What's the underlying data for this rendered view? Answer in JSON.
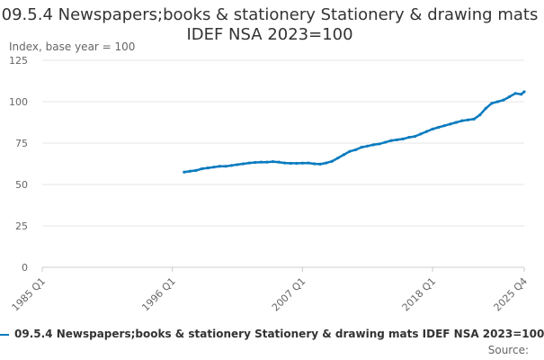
{
  "title": "09.5.4 Newspapers;books & stationery Stationery & drawing mats IDEF NSA 2023=100",
  "source_label": "Source:",
  "colors": {
    "series": "#0a7bbf",
    "grid": "#e6e6e6",
    "axis": "#cccccc",
    "tick_text": "#666666"
  },
  "chart_data": {
    "type": "line",
    "title": "09.5.4 Newspapers;books & stationery Stationery & drawing mats IDEF NSA 2023=100",
    "ylabel": "Index, base year = 100",
    "xlabel": "",
    "ylim": [
      0,
      125
    ],
    "yticks": [
      0,
      25,
      50,
      75,
      100,
      125
    ],
    "xticks": [
      "1985 Q1",
      "1996 Q1",
      "2007 Q1",
      "2018 Q1",
      "2025 Q4"
    ],
    "xlim": [
      "1985 Q1",
      "2025 Q4"
    ],
    "grid": true,
    "legend_position": "bottom",
    "series": [
      {
        "name": "09.5.4 Newspapers;books & stationery Stationery & drawing mats IDEF NSA 2023=100",
        "x": [
          "1997-01",
          "1997-07",
          "1998-01",
          "1998-07",
          "1999-01",
          "1999-07",
          "2000-01",
          "2000-07",
          "2001-01",
          "2001-07",
          "2002-01",
          "2002-07",
          "2003-01",
          "2003-07",
          "2004-01",
          "2004-07",
          "2005-01",
          "2005-07",
          "2006-01",
          "2006-07",
          "2007-01",
          "2007-07",
          "2008-01",
          "2008-07",
          "2009-01",
          "2009-07",
          "2010-01",
          "2010-07",
          "2011-01",
          "2011-07",
          "2012-01",
          "2012-07",
          "2013-01",
          "2013-07",
          "2014-01",
          "2014-07",
          "2015-01",
          "2015-07",
          "2016-01",
          "2016-07",
          "2017-01",
          "2017-07",
          "2018-01",
          "2018-07",
          "2019-01",
          "2019-07",
          "2020-01",
          "2020-07",
          "2021-01",
          "2021-07",
          "2022-01",
          "2022-07",
          "2023-01",
          "2023-07",
          "2024-01",
          "2024-07",
          "2025-01",
          "2025-07",
          "2025-10"
        ],
        "values": [
          57.5,
          58.0,
          58.5,
          59.5,
          60.0,
          60.5,
          61.0,
          61.0,
          61.5,
          62.0,
          62.5,
          63.0,
          63.3,
          63.5,
          63.5,
          63.8,
          63.5,
          63.0,
          62.8,
          62.8,
          62.9,
          63.0,
          62.5,
          62.3,
          63.0,
          64.0,
          66.0,
          68.0,
          70.0,
          71.0,
          72.5,
          73.2,
          74.0,
          74.5,
          75.5,
          76.5,
          77.0,
          77.5,
          78.5,
          79.0,
          80.5,
          82.0,
          83.5,
          84.5,
          85.5,
          86.5,
          87.5,
          88.5,
          89.0,
          89.5,
          92.0,
          96.0,
          99.0,
          100.0,
          101.0,
          103.0,
          105.0,
          104.5,
          106.0
        ]
      }
    ]
  }
}
